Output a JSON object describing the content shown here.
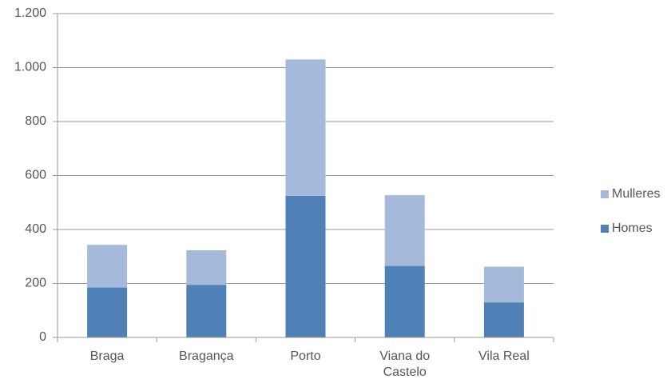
{
  "chart_data": {
    "type": "stacked_bar",
    "categories": [
      "Braga",
      "Bragança",
      "Porto",
      "Viana do Castelo",
      "Vila Real"
    ],
    "series": [
      {
        "name": "Homes",
        "color": "#4f81b7",
        "values": [
          185,
          195,
          525,
          265,
          130
        ]
      },
      {
        "name": "Mulleres",
        "color": "#a5b9da",
        "values": [
          158,
          128,
          505,
          262,
          132
        ]
      }
    ],
    "ylim": [
      0,
      1200
    ],
    "yticks": [
      0,
      200,
      400,
      600,
      800,
      {
        "value": 1000,
        "label": "1.000"
      },
      {
        "value": 1200,
        "label": "1.200"
      }
    ],
    "grid": true,
    "legend": "right"
  }
}
